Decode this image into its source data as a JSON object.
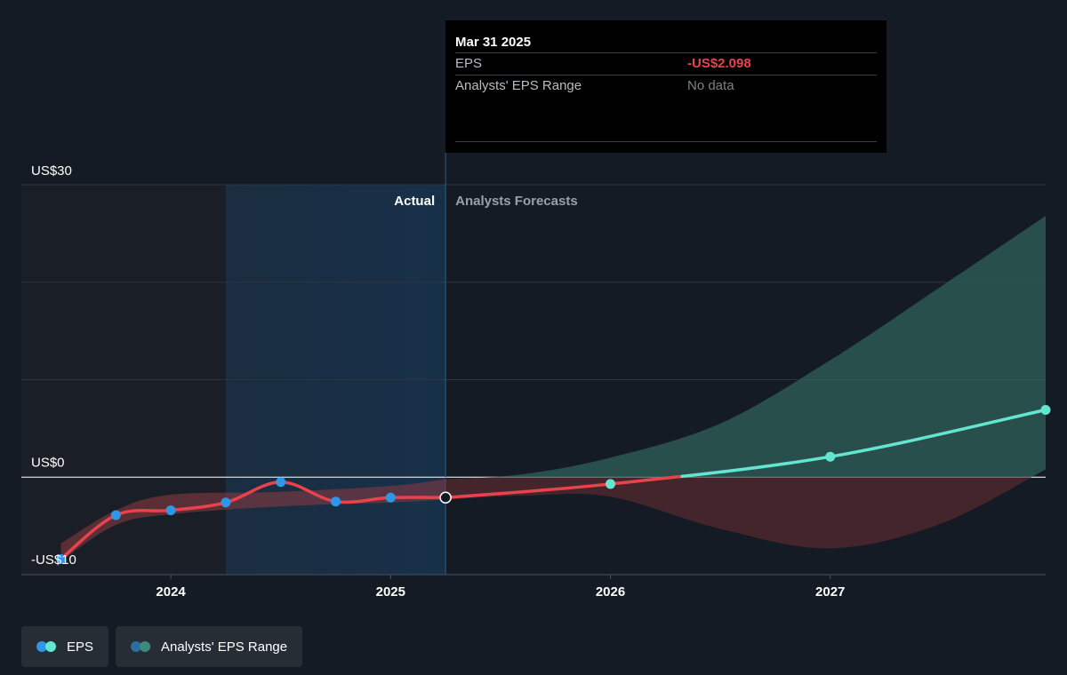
{
  "tooltip": {
    "date": "Mar 31 2025",
    "eps_label": "EPS",
    "eps_value": "-US$2.098",
    "range_label": "Analysts' EPS Range",
    "range_value": "No data"
  },
  "legend": {
    "items": [
      {
        "label": "EPS",
        "colors": [
          "#2f96e8",
          "#63e6d1"
        ]
      },
      {
        "label": "Analysts' EPS Range",
        "colors": [
          "#2b6ea0",
          "#3d8b80"
        ]
      }
    ]
  },
  "chart_data": {
    "type": "line",
    "ylim": [
      -10,
      30
    ],
    "xlim": [
      2023.32,
      2027.98
    ],
    "y_ticks": [
      {
        "value": 30,
        "label": "US$30"
      },
      {
        "value": 0,
        "label": "US$0"
      },
      {
        "value": -10,
        "label": "-US$10"
      }
    ],
    "x_ticks": [
      {
        "value": 2024,
        "label": "2024"
      },
      {
        "value": 2025,
        "label": "2025"
      },
      {
        "value": 2026,
        "label": "2026"
      },
      {
        "value": 2027,
        "label": "2027"
      }
    ],
    "grid": true,
    "region_labels": {
      "actual": "Actual",
      "forecast": "Analysts Forecasts"
    },
    "past_year_start": 2024.25,
    "divider_x": 2025.25,
    "colors": {
      "eps_actual": "#e8434c",
      "eps_dot": "#2f96e8",
      "forecast_line": "#63e6d1"
    },
    "series": [
      {
        "name": "EPS",
        "actual": [
          {
            "x": 2023.5,
            "y": -8.4
          },
          {
            "x": 2023.75,
            "y": -3.9
          },
          {
            "x": 2024.0,
            "y": -3.4
          },
          {
            "x": 2024.25,
            "y": -2.6
          },
          {
            "x": 2024.5,
            "y": -0.5
          },
          {
            "x": 2024.75,
            "y": -2.5
          },
          {
            "x": 2025.0,
            "y": -2.1
          },
          {
            "x": 2025.25,
            "y": -2.098
          }
        ],
        "forecast": [
          {
            "x": 2025.25,
            "y": -2.098
          },
          {
            "x": 2026.0,
            "y": -0.7
          },
          {
            "x": 2027.0,
            "y": 2.1
          },
          {
            "x": 2027.98,
            "y": 6.9
          }
        ]
      },
      {
        "name": "Analysts' EPS Range",
        "upper": [
          {
            "x": 2025.25,
            "y": -0.2
          },
          {
            "x": 2025.6,
            "y": 0.3
          },
          {
            "x": 2026.0,
            "y": 2.0
          },
          {
            "x": 2026.5,
            "y": 5.5
          },
          {
            "x": 2027.0,
            "y": 12.0
          },
          {
            "x": 2027.5,
            "y": 19.5
          },
          {
            "x": 2027.98,
            "y": 26.8
          }
        ],
        "lower": [
          {
            "x": 2025.25,
            "y": -2.3
          },
          {
            "x": 2025.6,
            "y": -1.9
          },
          {
            "x": 2026.0,
            "y": -2.0
          },
          {
            "x": 2026.5,
            "y": -5.3
          },
          {
            "x": 2027.0,
            "y": -7.3
          },
          {
            "x": 2027.5,
            "y": -4.8
          },
          {
            "x": 2027.98,
            "y": 0.8
          }
        ]
      }
    ]
  }
}
